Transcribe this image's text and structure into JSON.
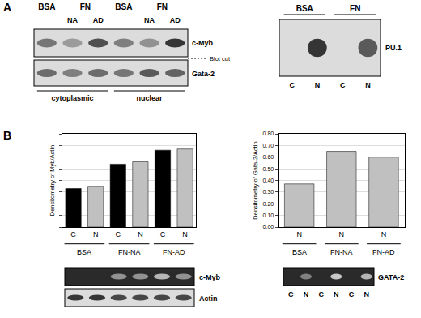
{
  "panels": {
    "A": {
      "label": "A",
      "left_blot": {
        "groups": [
          "BSA",
          "FN",
          "BSA",
          "FN"
        ],
        "sublanes": [
          "NA",
          "AD",
          "NA",
          "AD"
        ],
        "rows": [
          "c-Myb",
          "Gata-2"
        ],
        "cut_note": "Blot cut",
        "fractions": [
          "cytoplasmic",
          "nuclear"
        ]
      },
      "right_blot": {
        "groups": [
          "BSA",
          "FN"
        ],
        "lanes": [
          "C",
          "N",
          "C",
          "N"
        ],
        "row": "PU.1"
      }
    },
    "B": {
      "label": "B",
      "left_blots": {
        "rows": [
          "c-Myb",
          "Actin"
        ]
      },
      "right_blot": {
        "row": "GATA-2",
        "lanes": [
          "C",
          "N",
          "C",
          "N",
          "C",
          "N"
        ]
      }
    }
  },
  "chart_data": [
    {
      "type": "bar",
      "y_label": "Densitometry of Myb/Actin",
      "categories": [
        "C",
        "N",
        "C",
        "N",
        "C",
        "N"
      ],
      "groups": [
        "BSA",
        "FN-NA",
        "FN-AD"
      ],
      "values": [
        0.33,
        0.35,
        0.54,
        0.56,
        0.66,
        0.67
      ],
      "colors": [
        "#000000",
        "#c0c0c0",
        "#000000",
        "#c0c0c0",
        "#000000",
        "#c0c0c0"
      ],
      "ylim": [
        0,
        0.8
      ],
      "yticks": [
        0,
        0.1,
        0.2,
        0.3,
        0.4,
        0.5,
        0.6,
        0.7,
        0.8
      ],
      "tick_labels": "x",
      "grid": true
    },
    {
      "type": "bar",
      "y_label": "Densitometry of Gata-2/Actin",
      "categories": [
        "N",
        "N",
        "N"
      ],
      "groups": [
        "BSA",
        "FN-NA",
        "FN-AD"
      ],
      "values": [
        0.37,
        0.65,
        0.6
      ],
      "colors": [
        "#c0c0c0",
        "#c0c0c0",
        "#c0c0c0"
      ],
      "ylim": [
        0,
        0.8
      ],
      "yticks": [
        {
          "value": 0,
          "label": "0.00"
        },
        {
          "value": 0.1,
          "label": "0.10"
        },
        {
          "value": 0.2,
          "label": "0.20"
        },
        {
          "value": 0.3,
          "label": "0.30"
        },
        {
          "value": 0.4,
          "label": "0.40"
        },
        {
          "value": 0.5,
          "label": "0.50"
        },
        {
          "value": 0.6,
          "label": "0.60"
        },
        {
          "value": 0.7,
          "label": "0.70"
        },
        {
          "value": 0.8,
          "label": "0.80"
        }
      ],
      "grid": true
    }
  ]
}
